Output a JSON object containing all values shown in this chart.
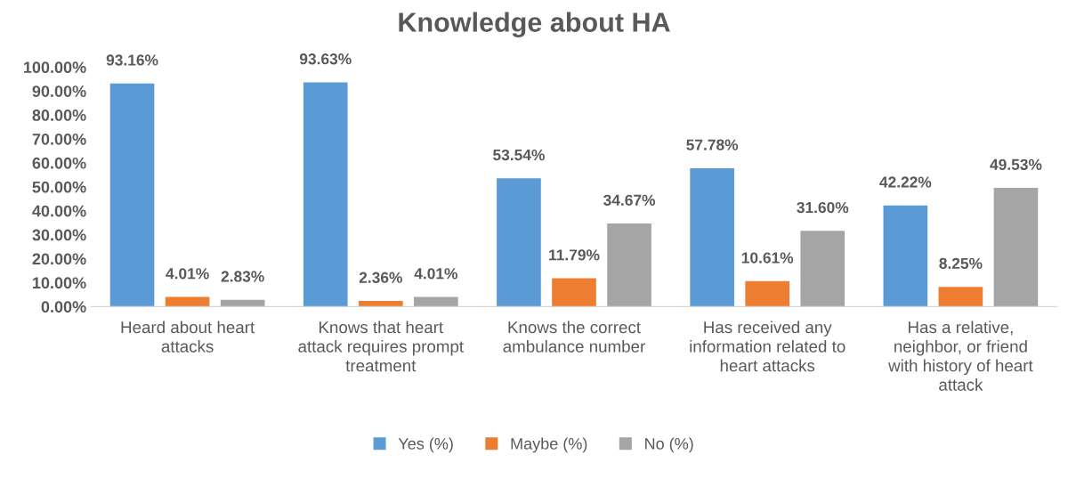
{
  "chart_data": {
    "type": "bar",
    "title": "Knowledge about HA",
    "categories": [
      "Heard about heart attacks",
      "Knows that heart attack requires prompt treatment",
      "Knows the correct ambulance number",
      "Has received any information related to heart attacks",
      "Has a relative, neighbor, or friend with history of heart attack"
    ],
    "series": [
      {
        "name": "Yes (%)",
        "color": "#5b9bd5",
        "values": [
          93.16,
          93.63,
          53.54,
          57.78,
          42.22
        ],
        "value_labels": [
          "93.16%",
          "93.63%",
          "53.54%",
          "57.78%",
          "42.22%"
        ]
      },
      {
        "name": "Maybe (%)",
        "color": "#ed7d31",
        "values": [
          4.01,
          2.36,
          11.79,
          10.61,
          8.25
        ],
        "value_labels": [
          "4.01%",
          "2.36%",
          "11.79%",
          "10.61%",
          "8.25%"
        ]
      },
      {
        "name": "No (%)",
        "color": "#a5a5a5",
        "values": [
          2.83,
          4.01,
          34.67,
          31.6,
          49.53
        ],
        "value_labels": [
          "2.83%",
          "4.01%",
          "34.67%",
          "31.60%",
          "49.53%"
        ]
      }
    ],
    "ylim": [
      0,
      100
    ],
    "yticks": [
      {
        "value": 0,
        "label": "0.00%"
      },
      {
        "value": 10,
        "label": "10.00%"
      },
      {
        "value": 20,
        "label": "20.00%"
      },
      {
        "value": 30,
        "label": "30.00%"
      },
      {
        "value": 40,
        "label": "40.00%"
      },
      {
        "value": 50,
        "label": "50.00%"
      },
      {
        "value": 60,
        "label": "60.00%"
      },
      {
        "value": 70,
        "label": "70.00%"
      },
      {
        "value": 80,
        "label": "80.00%"
      },
      {
        "value": 90,
        "label": "90.00%"
      },
      {
        "value": 100,
        "label": "100.00%"
      }
    ],
    "grid": false,
    "legend": "bottom"
  }
}
